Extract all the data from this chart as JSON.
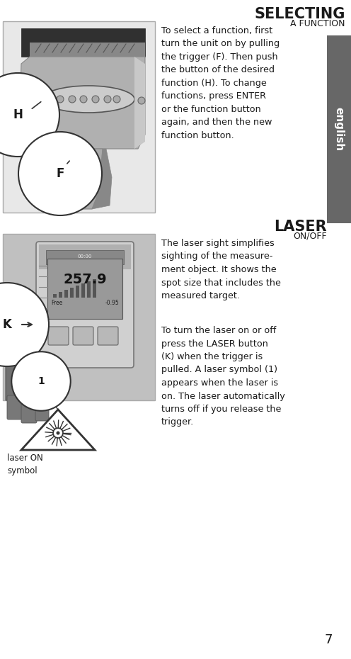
{
  "bg_color": "#ffffff",
  "title_selecting": "SELECTING",
  "subtitle_selecting": "A FUNCTION",
  "title_laser": "LASER",
  "subtitle_laser": "ON/OFF",
  "sidebar_text": "english",
  "sidebar_color": "#676767",
  "text_selecting": "To select a function, first\nturn the unit on by pulling\nthe trigger (F). Then push\nthe button of the desired\nfunction (H). To change\nfunctions, press ENTER\nor the function button\nagain, and then the new\nfunction button.",
  "text_laser1": "The laser sight simplifies\nsighting of the measure-\nment object. It shows the\nspot size that includes the\nmeasured target.",
  "text_laser2": "To turn the laser on or off\npress the LASER button\n(K) when the trigger is\npulled. A laser symbol (1)\nappears when the laser is\non. The laser automatically\nturns off if you release the\ntrigger.",
  "caption_laser": "laser ON\nsymbol",
  "page_number": "7"
}
